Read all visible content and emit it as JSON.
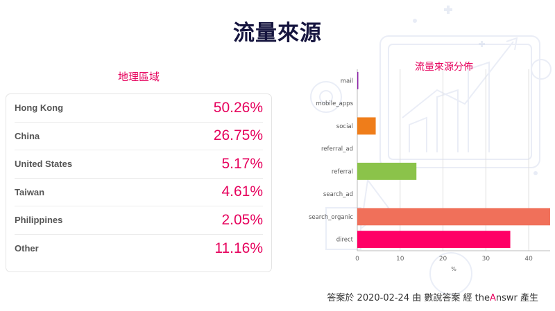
{
  "title": "流量來源",
  "geo": {
    "heading": "地理區域",
    "rows": [
      {
        "country": "Hong Kong",
        "pct": "50.26%"
      },
      {
        "country": "China",
        "pct": "26.75%"
      },
      {
        "country": "United States",
        "pct": "5.17%"
      },
      {
        "country": "Taiwan",
        "pct": "4.61%"
      },
      {
        "country": "Philippines",
        "pct": "2.05%"
      },
      {
        "country": "Other",
        "pct": "11.16%"
      }
    ]
  },
  "chart_data": {
    "type": "bar",
    "orientation": "horizontal",
    "title": "流量來源分佈",
    "xlabel": "%",
    "ylabel": "",
    "categories": [
      "mail",
      "mobile_apps",
      "social",
      "referral_ad",
      "referral",
      "search_ad",
      "search_organic",
      "direct"
    ],
    "values": [
      0.2,
      0,
      4.3,
      0,
      13.8,
      0,
      45.0,
      35.7
    ],
    "colors": [
      "#8e24aa",
      "#cccccc",
      "#ef7d1a",
      "#cccccc",
      "#8bc34a",
      "#cccccc",
      "#f0705a",
      "#ff0066"
    ],
    "xlim": [
      0,
      45
    ],
    "xticks": [
      0,
      10,
      20,
      30,
      40
    ],
    "grid": true
  },
  "footer": {
    "prefix": "答案於 2020-02-24 由 數說答案 經 the",
    "accent": "A",
    "suffix": "nswr 產生"
  }
}
